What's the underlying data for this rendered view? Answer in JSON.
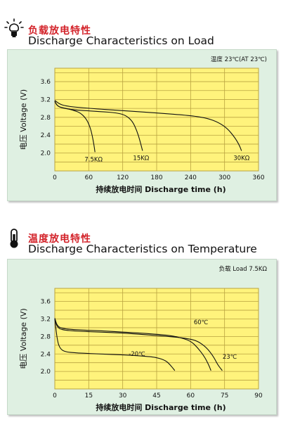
{
  "charts": [
    {
      "title_cn": "负载放电特性",
      "title_en": "Discharge Characteristics on Load",
      "icon": "lightbulb-icon"
    },
    {
      "title_cn": "温度放电特性",
      "title_en": "Discharge Characteristics on Temperature",
      "icon": "thermometer-icon"
    }
  ],
  "chart_data": [
    {
      "type": "line",
      "title": "Discharge Characteristics on Load",
      "note": "温度 23℃(AT 23℃)",
      "xlabel_cn": "持续放电时间",
      "xlabel": "Discharge time (h)",
      "ylabel_cn": "电压",
      "ylabel": "Voltage (V)",
      "xlim": [
        0,
        360
      ],
      "ylim": [
        1.6,
        3.9
      ],
      "xticks": [
        0,
        60,
        120,
        180,
        240,
        300,
        360
      ],
      "yticks": [
        2.0,
        2.4,
        2.8,
        3.2,
        3.6
      ],
      "grid": true,
      "colors": {
        "plot_bg": "#fff37c",
        "grid": "#b9a340",
        "line": "#111111"
      },
      "series": [
        {
          "name": "7.5KΩ",
          "points": [
            [
              0,
              3.16
            ],
            [
              3,
              3.08
            ],
            [
              8,
              3.03
            ],
            [
              20,
              3.0
            ],
            [
              35,
              2.95
            ],
            [
              45,
              2.9
            ],
            [
              55,
              2.78
            ],
            [
              62,
              2.6
            ],
            [
              66,
              2.4
            ],
            [
              69,
              2.2
            ],
            [
              71,
              2.02
            ]
          ]
        },
        {
          "name": "15KΩ",
          "points": [
            [
              0,
              3.16
            ],
            [
              5,
              3.05
            ],
            [
              15,
              3.0
            ],
            [
              40,
              2.96
            ],
            [
              80,
              2.93
            ],
            [
              110,
              2.9
            ],
            [
              125,
              2.85
            ],
            [
              137,
              2.72
            ],
            [
              145,
              2.5
            ],
            [
              150,
              2.3
            ],
            [
              153,
              2.15
            ],
            [
              155,
              2.05
            ]
          ]
        },
        {
          "name": "30KΩ",
          "points": [
            [
              0,
              3.18
            ],
            [
              8,
              3.1
            ],
            [
              20,
              3.05
            ],
            [
              60,
              3.0
            ],
            [
              120,
              2.95
            ],
            [
              180,
              2.9
            ],
            [
              240,
              2.84
            ],
            [
              270,
              2.78
            ],
            [
              290,
              2.68
            ],
            [
              305,
              2.55
            ],
            [
              318,
              2.35
            ],
            [
              326,
              2.18
            ],
            [
              330,
              2.05
            ]
          ]
        }
      ]
    },
    {
      "type": "line",
      "title": "Discharge Characteristics on Temperature",
      "note": "负载 Load 7.5KΩ",
      "xlabel_cn": "持续放电时间",
      "xlabel": "Discharge time (h)",
      "ylabel_cn": "电压",
      "ylabel": "Voltage (V)",
      "xlim": [
        0,
        90
      ],
      "ylim": [
        1.6,
        3.9
      ],
      "xticks": [
        0,
        15,
        30,
        45,
        60,
        75,
        90
      ],
      "yticks": [
        2.0,
        2.4,
        2.8,
        3.2,
        3.6
      ],
      "grid": true,
      "colors": {
        "plot_bg": "#fff37c",
        "grid": "#b9a340",
        "line": "#111111"
      },
      "series": [
        {
          "name": "60℃",
          "points": [
            [
              0,
              3.22
            ],
            [
              1,
              3.05
            ],
            [
              3,
              2.98
            ],
            [
              10,
              2.95
            ],
            [
              20,
              2.93
            ],
            [
              30,
              2.9
            ],
            [
              40,
              2.87
            ],
            [
              50,
              2.83
            ],
            [
              55,
              2.78
            ],
            [
              60,
              2.7
            ],
            [
              63,
              2.55
            ],
            [
              66,
              2.35
            ],
            [
              68,
              2.15
            ],
            [
              69,
              2.02
            ]
          ]
        },
        {
          "name": "23℃",
          "points": [
            [
              0,
              3.2
            ],
            [
              1,
              3.02
            ],
            [
              3,
              2.95
            ],
            [
              10,
              2.92
            ],
            [
              20,
              2.9
            ],
            [
              30,
              2.88
            ],
            [
              40,
              2.84
            ],
            [
              50,
              2.8
            ],
            [
              58,
              2.76
            ],
            [
              63,
              2.7
            ],
            [
              67,
              2.55
            ],
            [
              70,
              2.35
            ],
            [
              72,
              2.15
            ],
            [
              74,
              2.02
            ]
          ]
        },
        {
          "name": "-20℃",
          "points": [
            [
              0,
              3.2
            ],
            [
              1,
              2.75
            ],
            [
              2,
              2.55
            ],
            [
              4,
              2.45
            ],
            [
              10,
              2.42
            ],
            [
              20,
              2.4
            ],
            [
              30,
              2.38
            ],
            [
              40,
              2.35
            ],
            [
              45,
              2.32
            ],
            [
              49,
              2.25
            ],
            [
              51,
              2.15
            ],
            [
              53,
              2.02
            ]
          ]
        }
      ]
    }
  ]
}
